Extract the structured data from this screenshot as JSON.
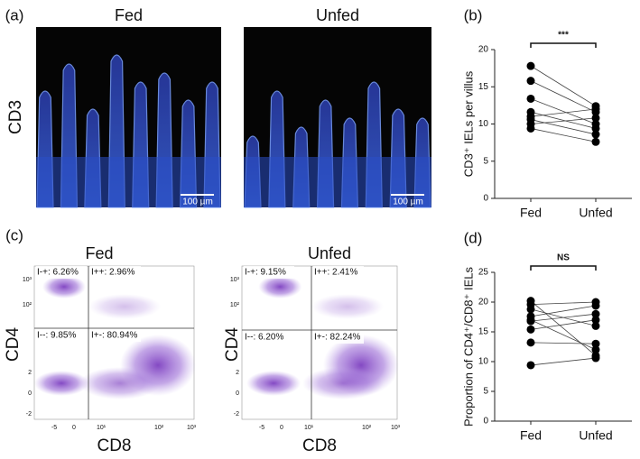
{
  "panel_labels": [
    "(a)",
    "(b)",
    "(c)",
    "(d)"
  ],
  "micrographs": {
    "stain": "CD3",
    "panels": [
      {
        "title": "Fed",
        "scale_bar": "100 µm"
      },
      {
        "title": "Unfed",
        "scale_bar": "100 µm"
      }
    ]
  },
  "flow": {
    "panels": [
      {
        "title": "Fed",
        "y_label": "CD4",
        "x_label": "CD8",
        "quadrants": [
          "I-+: 6.26%",
          "I++: 2.96%",
          "I--: 9.85%",
          "I+-: 80.94%"
        ]
      },
      {
        "title": "Unfed",
        "y_label": "CD4",
        "x_label": "CD8",
        "quadrants": [
          "I-+: 9.15%",
          "I++: 2.41%",
          "I--: 6.20%",
          "I+-: 82.24%"
        ]
      }
    ],
    "xticks": [
      "-5",
      "0",
      "10¹",
      "10²",
      "10³"
    ],
    "yticks": [
      "-2",
      "0",
      "2",
      "10²",
      "10³"
    ]
  },
  "chart_data": [
    {
      "type": "paired",
      "ylabel": "CD3⁺ IELs per villus",
      "annotation": "***",
      "categories": [
        "Fed",
        "Unfed"
      ],
      "pairs": [
        [
          17.8,
          12.4
        ],
        [
          15.8,
          11.6
        ],
        [
          13.4,
          10.0
        ],
        [
          11.6,
          9.4
        ],
        [
          11.0,
          12.0
        ],
        [
          10.6,
          8.6
        ],
        [
          10.0,
          10.8
        ],
        [
          9.4,
          7.6
        ]
      ],
      "ylim": [
        0,
        20
      ],
      "yticks": [
        0,
        5,
        10,
        15,
        20
      ],
      "color": "#000000"
    },
    {
      "type": "paired",
      "ylabel": "Proportion of CD4⁺/CD8⁺ IELs",
      "annotation": "NS",
      "categories": [
        "Fed",
        "Unfed"
      ],
      "pairs": [
        [
          20.2,
          11.0
        ],
        [
          19.6,
          20.0
        ],
        [
          18.8,
          16.0
        ],
        [
          17.6,
          19.4
        ],
        [
          17.0,
          12.0
        ],
        [
          16.8,
          18.0
        ],
        [
          15.4,
          17.0
        ],
        [
          13.2,
          13.0
        ],
        [
          9.4,
          10.6
        ]
      ],
      "ylim": [
        0,
        25
      ],
      "yticks": [
        0,
        5,
        10,
        15,
        20,
        25
      ],
      "color": "#000000"
    }
  ]
}
